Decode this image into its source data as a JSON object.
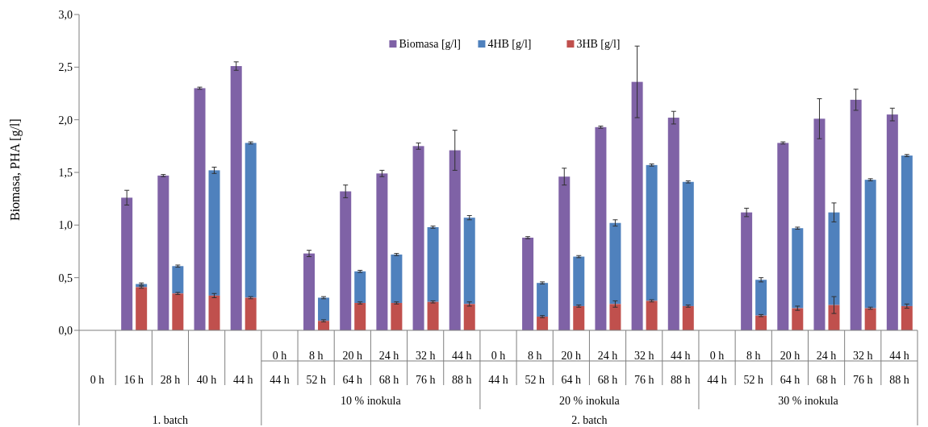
{
  "chart_data": {
    "type": "bar",
    "ylabel": "Biomasa, PHA [g/l]",
    "categories": [
      "0 h",
      "16 h",
      "28 h",
      "40 h",
      "44 h",
      "0 h\n44 h",
      "8 h\n52 h",
      "20 h\n64 h",
      "24 h\n68 h",
      "32 h\n76 h",
      "44 h\n88 h",
      "0 h\n44 h",
      "8 h\n52 h",
      "20 h\n64 h",
      "24 h\n68 h",
      "32 h\n76 h",
      "44 h\n88 h",
      "0 h\n44 h",
      "8 h\n52 h",
      "20 h\n64 h",
      "24 h\n68 h",
      "32 h\n76 h",
      "44 h\n88 h"
    ],
    "series": [
      {
        "name": "Biomasa [g/l]",
        "color": "#7f62a6",
        "values": [
          null,
          1.26,
          1.47,
          2.3,
          2.51,
          null,
          0.73,
          1.32,
          1.49,
          1.75,
          1.71,
          null,
          0.88,
          1.46,
          1.93,
          2.36,
          2.02,
          null,
          1.12,
          1.78,
          2.01,
          2.19,
          2.05
        ],
        "errors": [
          null,
          0.07,
          0.01,
          0.01,
          0.04,
          null,
          0.03,
          0.06,
          0.03,
          0.03,
          0.19,
          null,
          0.01,
          0.08,
          0.01,
          0.34,
          0.06,
          null,
          0.04,
          0.01,
          0.19,
          0.1,
          0.06
        ]
      },
      {
        "name": "4HB [g/l]",
        "color": "#4f81bd",
        "base": [
          null,
          0.41,
          0.35,
          0.33,
          0.31,
          null,
          0.09,
          0.26,
          0.26,
          0.27,
          0.25,
          null,
          0.13,
          0.23,
          0.25,
          0.28,
          0.23,
          null,
          0.14,
          0.21,
          0.24,
          0.21,
          0.23
        ],
        "values": [
          null,
          0.03,
          0.26,
          1.19,
          1.47,
          null,
          0.22,
          0.3,
          0.46,
          0.71,
          0.82,
          null,
          0.32,
          0.47,
          0.77,
          1.29,
          1.18,
          null,
          0.34,
          0.76,
          0.88,
          1.22,
          1.43
        ],
        "errors": [
          null,
          0.01,
          0.01,
          0.03,
          0.01,
          null,
          0.01,
          0.01,
          0.01,
          0.01,
          0.02,
          null,
          0.01,
          0.01,
          0.03,
          0.01,
          0.01,
          null,
          0.02,
          0.01,
          0.09,
          0.01,
          0.01
        ]
      },
      {
        "name": "3HB [g/l]",
        "color": "#c0504d",
        "values": [
          null,
          0.41,
          0.35,
          0.33,
          0.31,
          null,
          0.09,
          0.26,
          0.26,
          0.27,
          0.25,
          null,
          0.13,
          0.23,
          0.25,
          0.28,
          0.23,
          null,
          0.14,
          0.21,
          0.24,
          0.21,
          0.23
        ],
        "errors": [
          null,
          0.01,
          0.01,
          0.02,
          0.01,
          null,
          0.01,
          0.01,
          0.01,
          0.01,
          0.02,
          null,
          0.01,
          0.01,
          0.03,
          0.01,
          0.01,
          null,
          0.01,
          0.02,
          0.08,
          0.01,
          0.02
        ]
      }
    ],
    "ylim": [
      0,
      3
    ],
    "yticks": [
      {
        "value": 0,
        "label": "0,0"
      },
      {
        "value": 0.5,
        "label": "0,5"
      },
      {
        "value": 1,
        "label": "1,0"
      },
      {
        "value": 1.5,
        "label": "1,5"
      },
      {
        "value": 2,
        "label": "2,0"
      },
      {
        "value": 2.5,
        "label": "2,5"
      },
      {
        "value": 3,
        "label": "3,0"
      }
    ],
    "grid": false,
    "legend": "top",
    "annotations": [
      "10 % inokula",
      "20 % inokula",
      "30 % inokula",
      "1. batch",
      "2. batch"
    ]
  }
}
